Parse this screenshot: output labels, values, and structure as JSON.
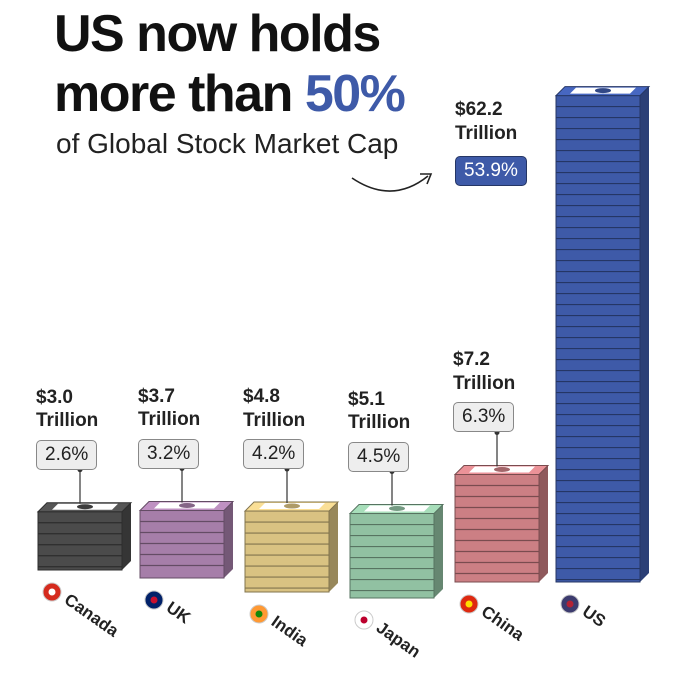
{
  "title_line1": "US now holds",
  "title_line2": "more than",
  "title_highlight": "50%",
  "subtitle": "of Global Stock Market Cap",
  "chart_data": {
    "type": "bar",
    "categories": [
      "Canada",
      "UK",
      "India",
      "Japan",
      "China",
      "US"
    ],
    "values": [
      3.0,
      3.7,
      4.8,
      5.1,
      7.2,
      62.2
    ],
    "value_labels": [
      "$3.0 Trillion",
      "$3.7 Trillion",
      "$4.8 Trillion",
      "$5.1 Trillion",
      "$7.2 Trillion",
      "$62.2 Trillion"
    ],
    "shares": {
      "values": [
        2.6,
        3.2,
        4.2,
        4.5,
        6.3,
        53.9
      ],
      "value_labels": [
        "2.6%",
        "3.2%",
        "4.2%",
        "4.5%",
        "6.3%",
        "53.9%"
      ]
    },
    "colors": [
      "#4b4b4b",
      "#a67ea9",
      "#d9c282",
      "#91c1a2",
      "#cc7f84",
      "#3e5aa8"
    ],
    "highlight_color": "#3e5aa8"
  }
}
